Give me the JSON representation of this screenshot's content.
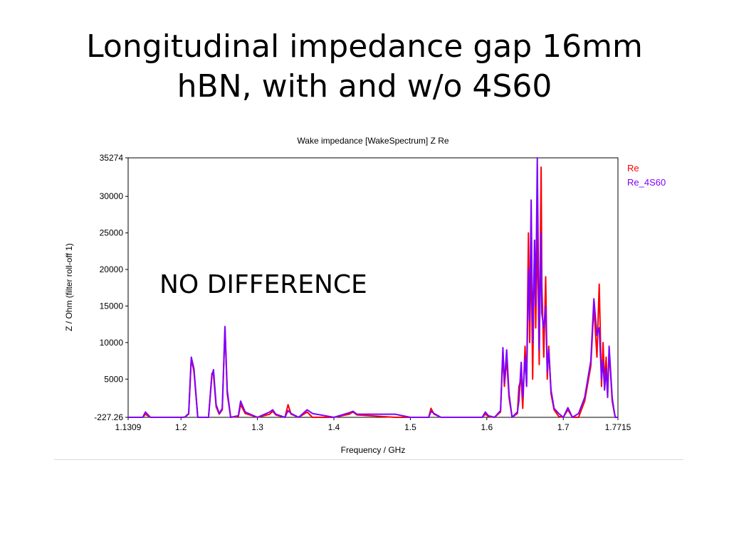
{
  "slide": {
    "title_line1": "Longitudinal impedance gap 16mm",
    "title_line2": "hBN, with and w/o 4S60",
    "annotation": "NO DIFFERENCE"
  },
  "chart_data": {
    "type": "line",
    "title": "Wake impedance [WakeSpectrum] Z Re",
    "xlabel": "Frequency / GHz",
    "ylabel": "Z / Ohm (filter roll-off 1)",
    "xlim": [
      1.1309,
      1.7715
    ],
    "ylim": [
      -227.26,
      35274
    ],
    "x_ticks": [
      1.1309,
      1.2,
      1.3,
      1.4,
      1.5,
      1.6,
      1.7,
      1.7715
    ],
    "x_tick_labels": [
      "1.1309",
      "1.2",
      "1.3",
      "1.4",
      "1.5",
      "1.6",
      "1.7",
      "1.7715"
    ],
    "y_ticks": [
      -227.26,
      5000,
      10000,
      15000,
      20000,
      25000,
      30000,
      35274
    ],
    "y_tick_labels": [
      "-227.26",
      "5000",
      "10000",
      "15000",
      "20000",
      "25000",
      "30000",
      "35274"
    ],
    "grid": true,
    "grid_style": "dashed",
    "legend_position": "top-right, outside plot",
    "series": [
      {
        "name": "Re",
        "color": "#ff0000",
        "x": [
          1.1309,
          1.15,
          1.1535,
          1.16,
          1.18,
          1.199,
          1.205,
          1.21,
          1.2135,
          1.217,
          1.222,
          1.236,
          1.2405,
          1.2425,
          1.246,
          1.25,
          1.254,
          1.2575,
          1.2605,
          1.265,
          1.275,
          1.278,
          1.284,
          1.3,
          1.316,
          1.32,
          1.324,
          1.336,
          1.34,
          1.344,
          1.354,
          1.365,
          1.372,
          1.4,
          1.42,
          1.425,
          1.43,
          1.48,
          1.5,
          1.524,
          1.527,
          1.531,
          1.54,
          1.56,
          1.58,
          1.594,
          1.598,
          1.602,
          1.61,
          1.618,
          1.621,
          1.623,
          1.626,
          1.629,
          1.633,
          1.64,
          1.642,
          1.645,
          1.647,
          1.65,
          1.652,
          1.6545,
          1.656,
          1.658,
          1.66,
          1.6625,
          1.664,
          1.666,
          1.6685,
          1.671,
          1.672,
          1.6745,
          1.677,
          1.679,
          1.681,
          1.684,
          1.688,
          1.694,
          1.7,
          1.706,
          1.712,
          1.72,
          1.728,
          1.736,
          1.74,
          1.744,
          1.747,
          1.75,
          1.752,
          1.754,
          1.756,
          1.758,
          1.76,
          1.762,
          1.764,
          1.766,
          1.768,
          1.7715
        ],
        "y": [
          -227,
          -227,
          200,
          -227,
          -227,
          -227,
          -200,
          200,
          7800,
          6000,
          -227,
          -227,
          5800,
          5600,
          1200,
          200,
          800,
          12000,
          3000,
          -227,
          -100,
          1500,
          300,
          -227,
          200,
          600,
          100,
          -227,
          1500,
          200,
          -227,
          500,
          -227,
          -227,
          200,
          500,
          100,
          -227,
          -227,
          -227,
          1000,
          200,
          -227,
          -227,
          -227,
          -227,
          200,
          -100,
          -227,
          500,
          8800,
          4000,
          7800,
          2500,
          -227,
          300,
          4000,
          5000,
          1000,
          9500,
          4500,
          25000,
          10000,
          23000,
          5000,
          24000,
          12000,
          25500,
          7000,
          34000,
          18000,
          8000,
          19000,
          5000,
          9500,
          3000,
          800,
          -100,
          -227,
          800,
          -227,
          -227,
          2000,
          6800,
          15000,
          8000,
          18000,
          4000,
          10000,
          4500,
          8000,
          3000,
          8800,
          5500,
          2000,
          800,
          -227,
          -227
        ]
      },
      {
        "name": "Re_4S60",
        "color": "#7f00ff",
        "x": [
          1.1309,
          1.15,
          1.1535,
          1.16,
          1.18,
          1.199,
          1.205,
          1.21,
          1.2135,
          1.217,
          1.222,
          1.236,
          1.2405,
          1.2425,
          1.246,
          1.25,
          1.254,
          1.2575,
          1.2605,
          1.265,
          1.275,
          1.278,
          1.284,
          1.3,
          1.316,
          1.32,
          1.324,
          1.336,
          1.34,
          1.344,
          1.354,
          1.365,
          1.372,
          1.4,
          1.42,
          1.425,
          1.43,
          1.48,
          1.5,
          1.524,
          1.527,
          1.531,
          1.54,
          1.56,
          1.58,
          1.594,
          1.598,
          1.602,
          1.61,
          1.618,
          1.621,
          1.623,
          1.626,
          1.629,
          1.633,
          1.64,
          1.642,
          1.645,
          1.647,
          1.65,
          1.652,
          1.6545,
          1.656,
          1.658,
          1.66,
          1.6625,
          1.664,
          1.666,
          1.6685,
          1.671,
          1.672,
          1.6745,
          1.677,
          1.679,
          1.681,
          1.684,
          1.688,
          1.694,
          1.7,
          1.706,
          1.712,
          1.72,
          1.728,
          1.736,
          1.74,
          1.744,
          1.747,
          1.75,
          1.752,
          1.754,
          1.756,
          1.758,
          1.76,
          1.762,
          1.764,
          1.766,
          1.768,
          1.7715
        ],
        "y": [
          -227,
          -227,
          500,
          -227,
          -227,
          -227,
          -200,
          300,
          8000,
          6400,
          -227,
          -227,
          5500,
          6300,
          1500,
          300,
          1000,
          12200,
          3500,
          -227,
          0,
          2000,
          500,
          -227,
          500,
          800,
          200,
          -227,
          700,
          300,
          -227,
          800,
          300,
          -227,
          400,
          600,
          200,
          200,
          -227,
          -227,
          600,
          300,
          -227,
          -227,
          -227,
          -227,
          500,
          0,
          -227,
          700,
          9300,
          4500,
          9000,
          3000,
          -227,
          500,
          2000,
          7300,
          2500,
          8000,
          4000,
          20000,
          13000,
          29500,
          10000,
          24000,
          15000,
          35274,
          9000,
          25000,
          14000,
          12000,
          15000,
          6000,
          9000,
          3500,
          1000,
          300,
          -227,
          1100,
          -227,
          300,
          2500,
          7500,
          16000,
          11000,
          12000,
          5000,
          7500,
          3500,
          6500,
          2500,
          9500,
          6000,
          2500,
          1000,
          -227,
          -227
        ]
      }
    ]
  }
}
